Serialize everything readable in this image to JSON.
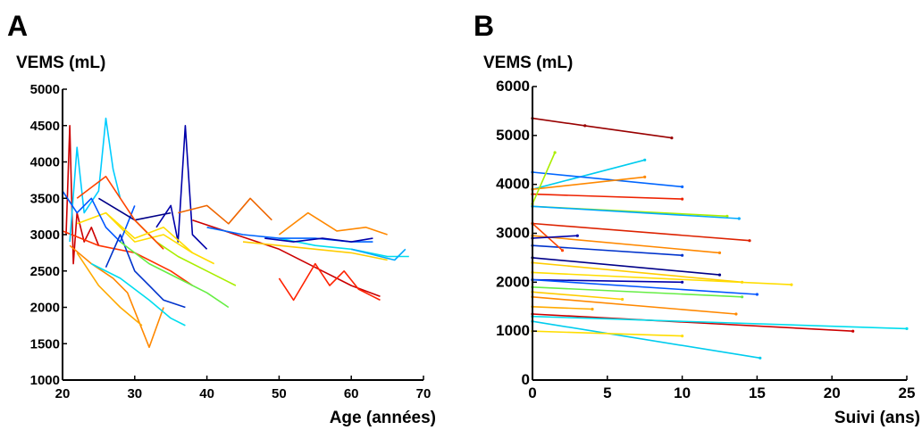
{
  "chart_data": [
    {
      "panel_label": "A",
      "type": "line",
      "ylabel": "VEMS (mL)",
      "xlabel": "Age (années)",
      "xlim": [
        20,
        70
      ],
      "ylim": [
        1000,
        5000
      ],
      "xticks": [
        "20",
        "30",
        "40",
        "50",
        "60",
        "70"
      ],
      "yticks": [
        "1000",
        "1500",
        "2000",
        "2500",
        "3000",
        "3500",
        "4000",
        "4500",
        "5000"
      ],
      "grid": false,
      "series": [
        {
          "color": "#cc0000",
          "x": [
            20.5,
            21,
            21.5,
            22,
            23,
            24,
            25
          ],
          "y": [
            3000,
            4500,
            2600,
            3300,
            2900,
            3100,
            2850
          ]
        },
        {
          "color": "#ff3300",
          "x": [
            20,
            25,
            30,
            35,
            38
          ],
          "y": [
            3050,
            2850,
            2750,
            2500,
            2300
          ]
        },
        {
          "color": "#ff8800",
          "x": [
            21,
            24,
            27,
            29,
            32,
            34
          ],
          "y": [
            2850,
            2600,
            2400,
            2200,
            1450,
            2000
          ]
        },
        {
          "color": "#ffaa00",
          "x": [
            22,
            25,
            28,
            31
          ],
          "y": [
            2750,
            2300,
            2000,
            1750
          ]
        },
        {
          "color": "#ffdd00",
          "x": [
            22,
            26,
            30,
            34,
            38
          ],
          "y": [
            3150,
            3300,
            2900,
            3000,
            2750
          ]
        },
        {
          "color": "#00ccff",
          "x": [
            21,
            22,
            23,
            25,
            26,
            27,
            28
          ],
          "y": [
            2900,
            4200,
            3300,
            3600,
            4600,
            3900,
            3500
          ]
        },
        {
          "color": "#00ddee",
          "x": [
            24,
            28,
            32,
            35,
            37
          ],
          "y": [
            2600,
            2400,
            2100,
            1850,
            1750
          ]
        },
        {
          "color": "#0055ff",
          "x": [
            20,
            22,
            24,
            26,
            28,
            30
          ],
          "y": [
            3600,
            3300,
            3500,
            3100,
            2900,
            3400
          ]
        },
        {
          "color": "#0000aa",
          "x": [
            33,
            35,
            36,
            37,
            38,
            40
          ],
          "y": [
            3100,
            3400,
            2900,
            4500,
            3000,
            2800
          ]
        },
        {
          "color": "#000088",
          "x": [
            25,
            30,
            35
          ],
          "y": [
            3500,
            3200,
            3300
          ]
        },
        {
          "color": "#0033cc",
          "x": [
            26,
            28,
            30,
            32,
            34,
            37
          ],
          "y": [
            2550,
            3000,
            2500,
            2300,
            2100,
            2000
          ]
        },
        {
          "color": "#66ee44",
          "x": [
            28,
            32,
            36,
            40,
            43
          ],
          "y": [
            2900,
            2600,
            2400,
            2200,
            2000
          ]
        },
        {
          "color": "#aaee00",
          "x": [
            30,
            33,
            36,
            40,
            44
          ],
          "y": [
            3200,
            2900,
            2700,
            2500,
            2300
          ]
        },
        {
          "color": "#ee6600",
          "x": [
            36,
            40,
            43,
            46,
            49
          ],
          "y": [
            3300,
            3400,
            3150,
            3500,
            3200
          ]
        },
        {
          "color": "#cc0000",
          "x": [
            38,
            44,
            50,
            56,
            60,
            64
          ],
          "y": [
            3200,
            3000,
            2800,
            2500,
            2300,
            2150
          ]
        },
        {
          "color": "#ff2200",
          "x": [
            50,
            52,
            55,
            57,
            59,
            61,
            63,
            64
          ],
          "y": [
            2400,
            2100,
            2600,
            2300,
            2500,
            2250,
            2150,
            2100
          ]
        },
        {
          "color": "#ff8800",
          "x": [
            50,
            54,
            58,
            62,
            65
          ],
          "y": [
            3000,
            3300,
            3050,
            3100,
            3000
          ]
        },
        {
          "color": "#ffcc00",
          "x": [
            45,
            50,
            55,
            60,
            65
          ],
          "y": [
            2900,
            2850,
            2800,
            2750,
            2650
          ]
        },
        {
          "color": "#00ddee",
          "x": [
            50,
            55,
            60,
            65,
            68
          ],
          "y": [
            2950,
            2850,
            2800,
            2700,
            2700
          ]
        },
        {
          "color": "#0066ff",
          "x": [
            40,
            45,
            50,
            55,
            60,
            63
          ],
          "y": [
            3100,
            3000,
            2950,
            2950,
            2900,
            2900
          ]
        },
        {
          "color": "#0000aa",
          "x": [
            48,
            52,
            56,
            60,
            63
          ],
          "y": [
            2950,
            2900,
            2950,
            2900,
            2950
          ]
        },
        {
          "color": "#00aaff",
          "x": [
            60,
            62,
            64,
            66,
            67.5
          ],
          "y": [
            2800,
            2750,
            2700,
            2650,
            2800
          ]
        },
        {
          "color": "#ff4400",
          "x": [
            22,
            26,
            30,
            34
          ],
          "y": [
            3500,
            3800,
            3200,
            2800
          ]
        },
        {
          "color": "#ffdd00",
          "x": [
            26,
            30,
            34,
            38,
            41
          ],
          "y": [
            3300,
            2950,
            3100,
            2750,
            2600
          ]
        }
      ]
    },
    {
      "panel_label": "B",
      "type": "line",
      "ylabel": "VEMS (mL)",
      "xlabel": "Suivi (ans)",
      "xlim": [
        0,
        25
      ],
      "ylim": [
        0,
        6000
      ],
      "xticks": [
        "0",
        "5",
        "10",
        "15",
        "20",
        "25"
      ],
      "yticks": [
        "0",
        "1000",
        "2000",
        "3000",
        "4000",
        "5000",
        "6000"
      ],
      "grid": false,
      "series": [
        {
          "color": "#990000",
          "x": [
            0,
            3.5,
            9.3
          ],
          "y": [
            5350,
            5200,
            4950
          ]
        },
        {
          "color": "#00ccee",
          "x": [
            0,
            7.5
          ],
          "y": [
            3900,
            4500
          ]
        },
        {
          "color": "#0066ff",
          "x": [
            0,
            10
          ],
          "y": [
            4250,
            3950
          ]
        },
        {
          "color": "#ff8800",
          "x": [
            0,
            7.5
          ],
          "y": [
            3900,
            4150
          ]
        },
        {
          "color": "#ee2200",
          "x": [
            0,
            10
          ],
          "y": [
            3800,
            3700
          ]
        },
        {
          "color": "#aaee00",
          "x": [
            0,
            13
          ],
          "y": [
            3550,
            3350
          ]
        },
        {
          "color": "#00aaff",
          "x": [
            0,
            13.8
          ],
          "y": [
            3550,
            3300
          ]
        },
        {
          "color": "#dd2200",
          "x": [
            0,
            14.5
          ],
          "y": [
            3200,
            2850
          ]
        },
        {
          "color": "#ff8800",
          "x": [
            0,
            12.5
          ],
          "y": [
            2950,
            2600
          ]
        },
        {
          "color": "#0033cc",
          "x": [
            0,
            10
          ],
          "y": [
            2750,
            2550
          ]
        },
        {
          "color": "#000088",
          "x": [
            0,
            12.5
          ],
          "y": [
            2500,
            2150
          ]
        },
        {
          "color": "#ffcc00",
          "x": [
            0,
            14
          ],
          "y": [
            2400,
            2000
          ]
        },
        {
          "color": "#ffdd00",
          "x": [
            0,
            17.3
          ],
          "y": [
            2200,
            1950
          ]
        },
        {
          "color": "#0000aa",
          "x": [
            0,
            10
          ],
          "y": [
            2050,
            2000
          ]
        },
        {
          "color": "#0055ff",
          "x": [
            0,
            15
          ],
          "y": [
            2050,
            1750
          ]
        },
        {
          "color": "#66ee44",
          "x": [
            0,
            14
          ],
          "y": [
            1900,
            1700
          ]
        },
        {
          "color": "#ff8800",
          "x": [
            0,
            13.6
          ],
          "y": [
            1700,
            1350
          ]
        },
        {
          "color": "#cc0000",
          "x": [
            0,
            21.4
          ],
          "y": [
            1350,
            1000
          ]
        },
        {
          "color": "#00ddee",
          "x": [
            0,
            25
          ],
          "y": [
            1300,
            1050
          ]
        },
        {
          "color": "#00ccee",
          "x": [
            0,
            15.2
          ],
          "y": [
            1200,
            450
          ]
        },
        {
          "color": "#ffdd00",
          "x": [
            0,
            10
          ],
          "y": [
            1000,
            900
          ]
        },
        {
          "color": "#aaee00",
          "x": [
            0,
            1.5
          ],
          "y": [
            3600,
            4650
          ]
        },
        {
          "color": "#ff4400",
          "x": [
            0,
            2
          ],
          "y": [
            3200,
            2650
          ]
        },
        {
          "color": "#ffaa00",
          "x": [
            0,
            4
          ],
          "y": [
            1500,
            1450
          ]
        },
        {
          "color": "#0000aa",
          "x": [
            0,
            3
          ],
          "y": [
            2900,
            2950
          ]
        },
        {
          "color": "#ffcc00",
          "x": [
            0,
            6
          ],
          "y": [
            1800,
            1650
          ]
        }
      ]
    }
  ]
}
